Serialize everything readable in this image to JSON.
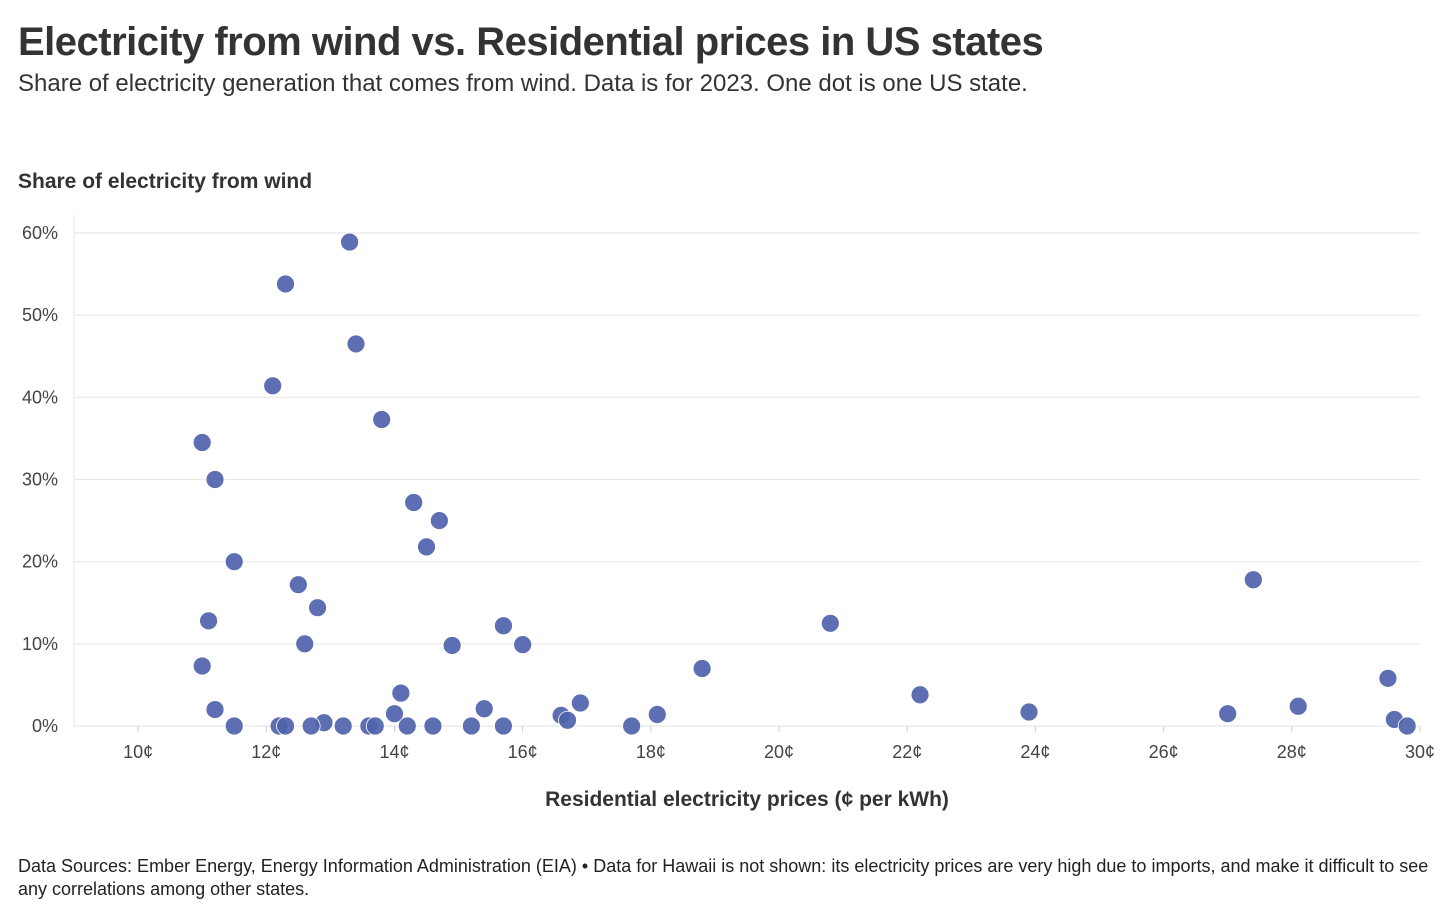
{
  "header": {
    "title": "Electricity from wind vs. Residential prices in US states",
    "subtitle": "Share of electricity generation that comes from wind. Data is for 2023. One dot is one US state."
  },
  "footer": {
    "text": "Data Sources: Ember Energy, Energy Information Administration (EIA) • Data for Hawaii is not shown: its electricity prices are very high due to imports, and make it difficult to see any correlations among other states."
  },
  "chart_data": {
    "type": "scatter",
    "title": "Electricity from wind vs. Residential prices in US states",
    "ylabel": "Share of electricity from wind",
    "xlabel": "Residential electricity prices (¢ per kWh)",
    "xlim": [
      9,
      30
    ],
    "ylim": [
      0,
      60
    ],
    "x_ticks": [
      10,
      12,
      14,
      16,
      18,
      20,
      22,
      24,
      26,
      28,
      30
    ],
    "x_tick_labels": [
      "10¢",
      "12¢",
      "14¢",
      "16¢",
      "18¢",
      "20¢",
      "22¢",
      "24¢",
      "26¢",
      "28¢",
      "30¢"
    ],
    "y_ticks": [
      0,
      10,
      20,
      30,
      40,
      50,
      60
    ],
    "y_tick_labels": [
      "0%",
      "10%",
      "20%",
      "30%",
      "40%",
      "50%",
      "60%"
    ],
    "grid": "horizontal",
    "point_color": "#4f63ab",
    "points": [
      {
        "x": 13.3,
        "y": 58.9
      },
      {
        "x": 12.3,
        "y": 53.8
      },
      {
        "x": 13.4,
        "y": 46.5
      },
      {
        "x": 12.1,
        "y": 41.4
      },
      {
        "x": 13.8,
        "y": 37.3
      },
      {
        "x": 11.0,
        "y": 34.5
      },
      {
        "x": 11.2,
        "y": 30.0
      },
      {
        "x": 14.3,
        "y": 27.2
      },
      {
        "x": 14.7,
        "y": 25.0
      },
      {
        "x": 14.5,
        "y": 21.8
      },
      {
        "x": 11.5,
        "y": 20.0
      },
      {
        "x": 27.4,
        "y": 17.8
      },
      {
        "x": 12.5,
        "y": 17.2
      },
      {
        "x": 12.8,
        "y": 14.4
      },
      {
        "x": 11.1,
        "y": 12.8
      },
      {
        "x": 20.8,
        "y": 12.5
      },
      {
        "x": 15.7,
        "y": 12.2
      },
      {
        "x": 12.6,
        "y": 10.0
      },
      {
        "x": 16.0,
        "y": 9.9
      },
      {
        "x": 14.9,
        "y": 9.8
      },
      {
        "x": 11.0,
        "y": 7.3
      },
      {
        "x": 18.8,
        "y": 7.0
      },
      {
        "x": 29.5,
        "y": 5.8
      },
      {
        "x": 14.1,
        "y": 4.0
      },
      {
        "x": 22.2,
        "y": 3.8
      },
      {
        "x": 16.9,
        "y": 2.8
      },
      {
        "x": 28.1,
        "y": 2.4
      },
      {
        "x": 15.4,
        "y": 2.1
      },
      {
        "x": 11.2,
        "y": 2.0
      },
      {
        "x": 23.9,
        "y": 1.7
      },
      {
        "x": 14.0,
        "y": 1.5
      },
      {
        "x": 27.0,
        "y": 1.5
      },
      {
        "x": 18.1,
        "y": 1.4
      },
      {
        "x": 16.6,
        "y": 1.3
      },
      {
        "x": 29.6,
        "y": 0.8
      },
      {
        "x": 16.7,
        "y": 0.7
      },
      {
        "x": 12.9,
        "y": 0.4
      },
      {
        "x": 11.5,
        "y": 0.0
      },
      {
        "x": 12.2,
        "y": 0.0
      },
      {
        "x": 12.3,
        "y": 0.0
      },
      {
        "x": 12.7,
        "y": 0.0
      },
      {
        "x": 13.2,
        "y": 0.0
      },
      {
        "x": 13.6,
        "y": 0.0
      },
      {
        "x": 13.7,
        "y": 0.0
      },
      {
        "x": 14.2,
        "y": 0.0
      },
      {
        "x": 14.6,
        "y": 0.0
      },
      {
        "x": 15.2,
        "y": 0.0
      },
      {
        "x": 15.7,
        "y": 0.0
      },
      {
        "x": 17.7,
        "y": 0.0
      },
      {
        "x": 29.8,
        "y": 0.0
      }
    ]
  }
}
